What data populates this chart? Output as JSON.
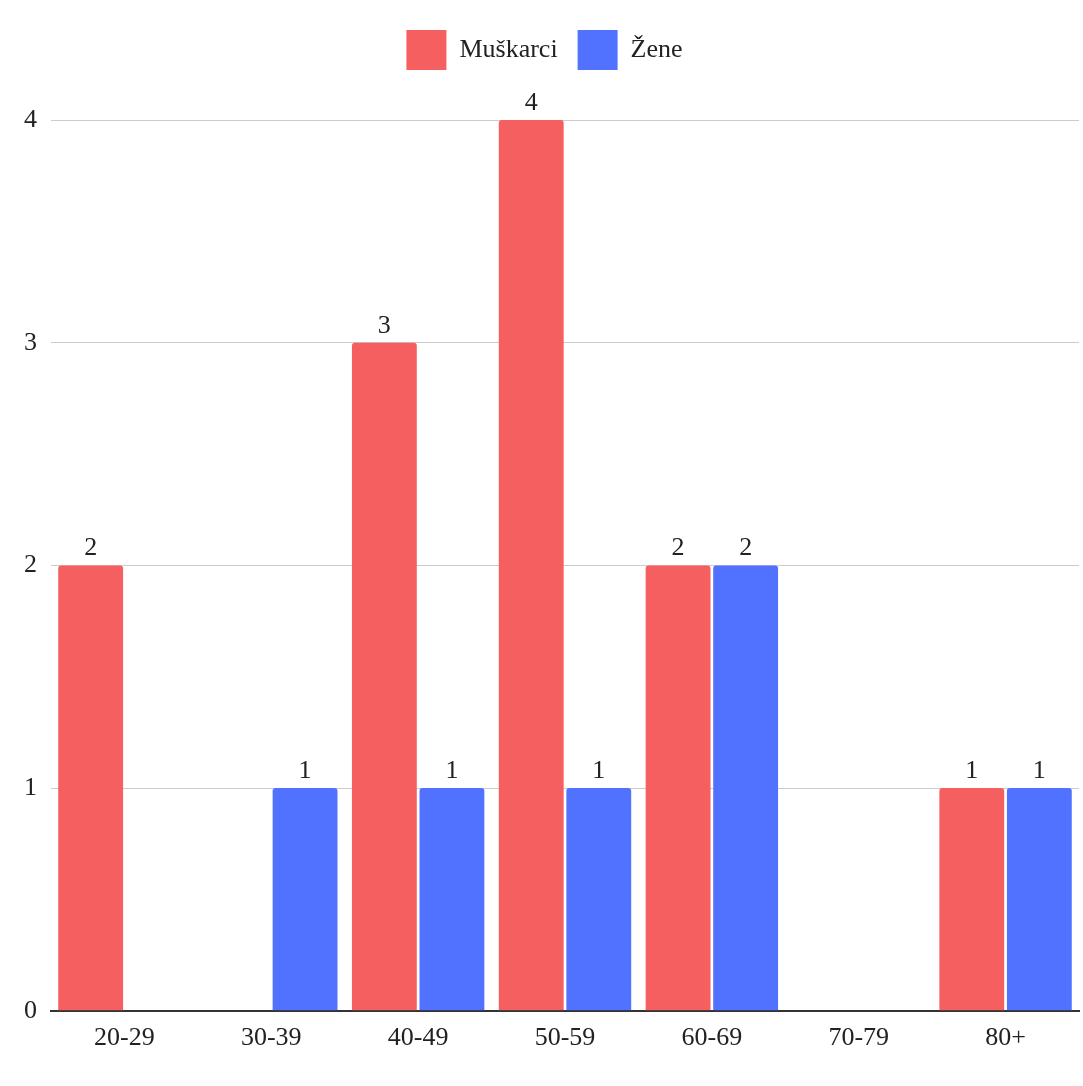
{
  "chart_data": {
    "type": "bar",
    "categories": [
      "20-29",
      "30-39",
      "40-49",
      "50-59",
      "60-69",
      "70-79",
      "80+"
    ],
    "series": [
      {
        "name": "Muškarci",
        "color": "#f65f5f",
        "values": [
          2,
          0,
          3,
          4,
          2,
          0,
          1
        ],
        "value_labels": [
          "2",
          null,
          "3",
          "4",
          "2",
          null,
          "1"
        ]
      },
      {
        "name": "Žene",
        "color": "#5172fe",
        "values": [
          0,
          1,
          1,
          1,
          2,
          0,
          1
        ],
        "value_labels": [
          null,
          "1",
          "1",
          "1",
          "2",
          null,
          "1"
        ]
      }
    ],
    "ylim": [
      0,
      4
    ],
    "yticks": [
      0,
      1,
      2,
      3,
      4
    ],
    "grid": "y",
    "legend": "top"
  }
}
